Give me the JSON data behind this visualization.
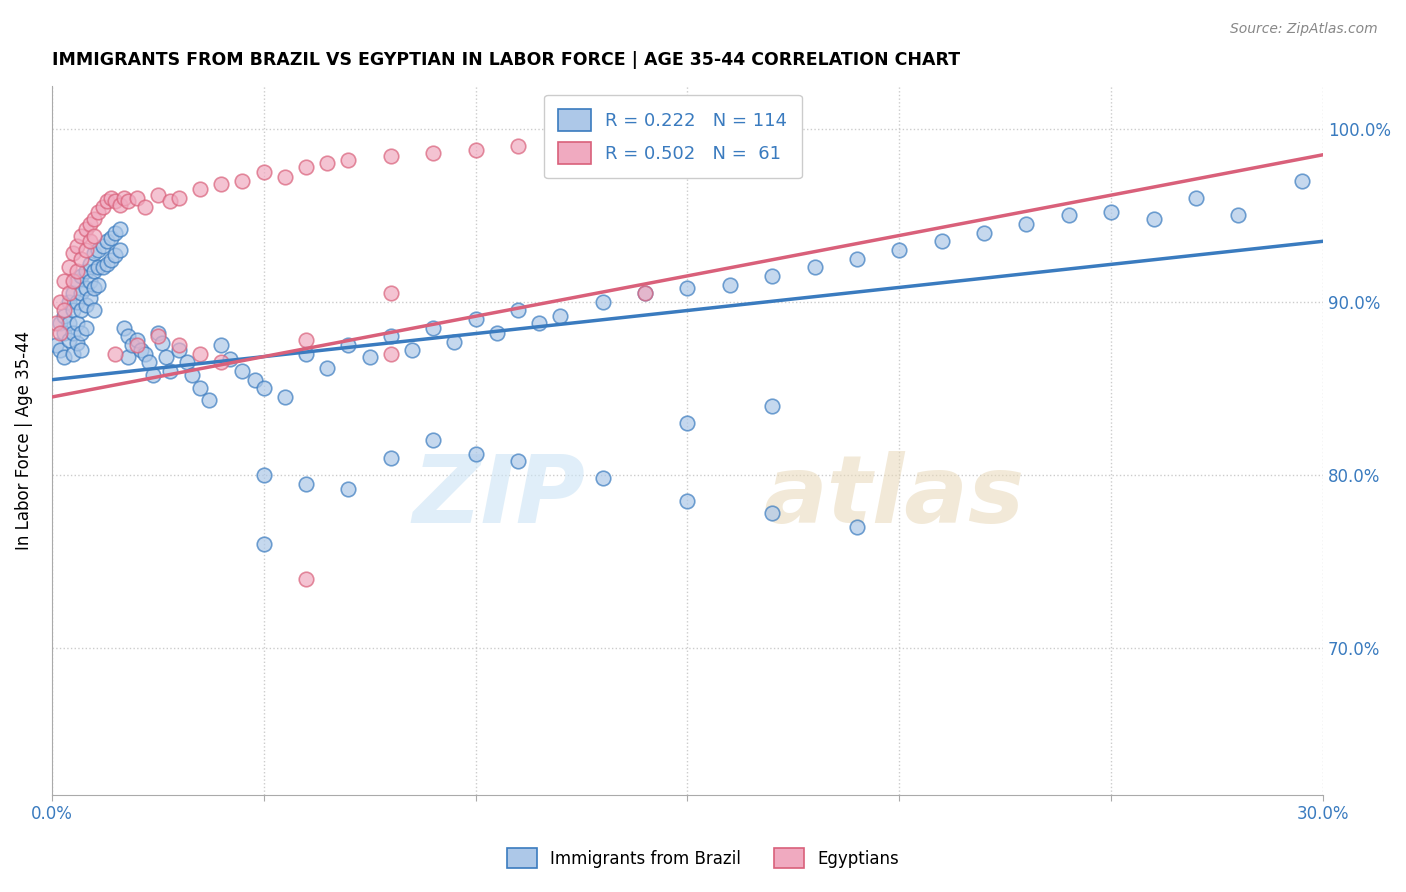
{
  "title": "IMMIGRANTS FROM BRAZIL VS EGYPTIAN IN LABOR FORCE | AGE 35-44 CORRELATION CHART",
  "source": "Source: ZipAtlas.com",
  "ylabel": "In Labor Force | Age 35-44",
  "x_min": 0.0,
  "x_max": 0.3,
  "y_min": 0.615,
  "y_max": 1.025,
  "x_ticks": [
    0.0,
    0.05,
    0.1,
    0.15,
    0.2,
    0.25,
    0.3
  ],
  "x_tick_labels": [
    "0.0%",
    "",
    "",
    "",
    "",
    "",
    "30.0%"
  ],
  "y_ticks": [
    0.7,
    0.8,
    0.9,
    1.0
  ],
  "y_tick_labels": [
    "70.0%",
    "80.0%",
    "90.0%",
    "100.0%"
  ],
  "brazil_R": 0.222,
  "brazil_N": 114,
  "egypt_R": 0.502,
  "egypt_N": 61,
  "brazil_color": "#adc8e8",
  "egypt_color": "#f0aac0",
  "brazil_line_color": "#3a7bbf",
  "egypt_line_color": "#d9607a",
  "brazil_line_y0": 0.855,
  "brazil_line_y1": 0.935,
  "egypt_line_y0": 0.845,
  "egypt_line_y1": 0.985,
  "brazil_x": [
    0.001,
    0.002,
    0.002,
    0.003,
    0.003,
    0.003,
    0.004,
    0.004,
    0.004,
    0.005,
    0.005,
    0.005,
    0.005,
    0.006,
    0.006,
    0.006,
    0.006,
    0.007,
    0.007,
    0.007,
    0.007,
    0.007,
    0.008,
    0.008,
    0.008,
    0.008,
    0.009,
    0.009,
    0.009,
    0.01,
    0.01,
    0.01,
    0.01,
    0.011,
    0.011,
    0.011,
    0.012,
    0.012,
    0.013,
    0.013,
    0.014,
    0.014,
    0.015,
    0.015,
    0.016,
    0.016,
    0.017,
    0.018,
    0.018,
    0.019,
    0.02,
    0.021,
    0.022,
    0.023,
    0.024,
    0.025,
    0.026,
    0.027,
    0.028,
    0.03,
    0.032,
    0.033,
    0.035,
    0.037,
    0.04,
    0.042,
    0.045,
    0.048,
    0.05,
    0.055,
    0.06,
    0.065,
    0.07,
    0.075,
    0.08,
    0.085,
    0.09,
    0.095,
    0.1,
    0.105,
    0.11,
    0.115,
    0.12,
    0.13,
    0.14,
    0.15,
    0.16,
    0.17,
    0.18,
    0.19,
    0.2,
    0.21,
    0.22,
    0.23,
    0.24,
    0.25,
    0.26,
    0.27,
    0.15,
    0.17,
    0.05,
    0.06,
    0.07,
    0.08,
    0.09,
    0.1,
    0.11,
    0.13,
    0.15,
    0.17,
    0.19,
    0.05,
    0.28,
    0.295
  ],
  "brazil_y": [
    0.875,
    0.888,
    0.872,
    0.892,
    0.882,
    0.868,
    0.9,
    0.888,
    0.878,
    0.905,
    0.895,
    0.882,
    0.87,
    0.912,
    0.9,
    0.888,
    0.876,
    0.915,
    0.905,
    0.895,
    0.882,
    0.872,
    0.918,
    0.908,
    0.898,
    0.885,
    0.922,
    0.912,
    0.902,
    0.928,
    0.918,
    0.908,
    0.895,
    0.93,
    0.92,
    0.91,
    0.932,
    0.92,
    0.935,
    0.922,
    0.937,
    0.924,
    0.94,
    0.927,
    0.942,
    0.93,
    0.885,
    0.88,
    0.868,
    0.875,
    0.878,
    0.872,
    0.87,
    0.865,
    0.858,
    0.882,
    0.876,
    0.868,
    0.86,
    0.872,
    0.865,
    0.858,
    0.85,
    0.843,
    0.875,
    0.867,
    0.86,
    0.855,
    0.85,
    0.845,
    0.87,
    0.862,
    0.875,
    0.868,
    0.88,
    0.872,
    0.885,
    0.877,
    0.89,
    0.882,
    0.895,
    0.888,
    0.892,
    0.9,
    0.905,
    0.908,
    0.91,
    0.915,
    0.92,
    0.925,
    0.93,
    0.935,
    0.94,
    0.945,
    0.95,
    0.952,
    0.948,
    0.96,
    0.83,
    0.84,
    0.8,
    0.795,
    0.792,
    0.81,
    0.82,
    0.812,
    0.808,
    0.798,
    0.785,
    0.778,
    0.77,
    0.76,
    0.95,
    0.97
  ],
  "egypt_x": [
    0.001,
    0.002,
    0.002,
    0.003,
    0.003,
    0.004,
    0.004,
    0.005,
    0.005,
    0.006,
    0.006,
    0.007,
    0.007,
    0.008,
    0.008,
    0.009,
    0.009,
    0.01,
    0.01,
    0.011,
    0.012,
    0.013,
    0.014,
    0.015,
    0.016,
    0.017,
    0.018,
    0.02,
    0.022,
    0.025,
    0.028,
    0.03,
    0.035,
    0.04,
    0.045,
    0.05,
    0.055,
    0.06,
    0.065,
    0.07,
    0.08,
    0.09,
    0.1,
    0.11,
    0.12,
    0.13,
    0.14,
    0.015,
    0.02,
    0.025,
    0.03,
    0.035,
    0.04,
    0.06,
    0.08,
    0.15,
    0.16,
    0.17,
    0.14,
    0.06,
    0.08
  ],
  "egypt_y": [
    0.888,
    0.9,
    0.882,
    0.912,
    0.895,
    0.92,
    0.905,
    0.928,
    0.912,
    0.932,
    0.918,
    0.938,
    0.925,
    0.942,
    0.93,
    0.945,
    0.935,
    0.948,
    0.938,
    0.952,
    0.955,
    0.958,
    0.96,
    0.958,
    0.956,
    0.96,
    0.958,
    0.96,
    0.955,
    0.962,
    0.958,
    0.96,
    0.965,
    0.968,
    0.97,
    0.975,
    0.972,
    0.978,
    0.98,
    0.982,
    0.984,
    0.986,
    0.988,
    0.99,
    0.992,
    0.994,
    0.996,
    0.87,
    0.875,
    0.88,
    0.875,
    0.87,
    0.865,
    0.878,
    0.87,
    0.998,
    1.0,
    0.998,
    0.905,
    0.74,
    0.905
  ]
}
